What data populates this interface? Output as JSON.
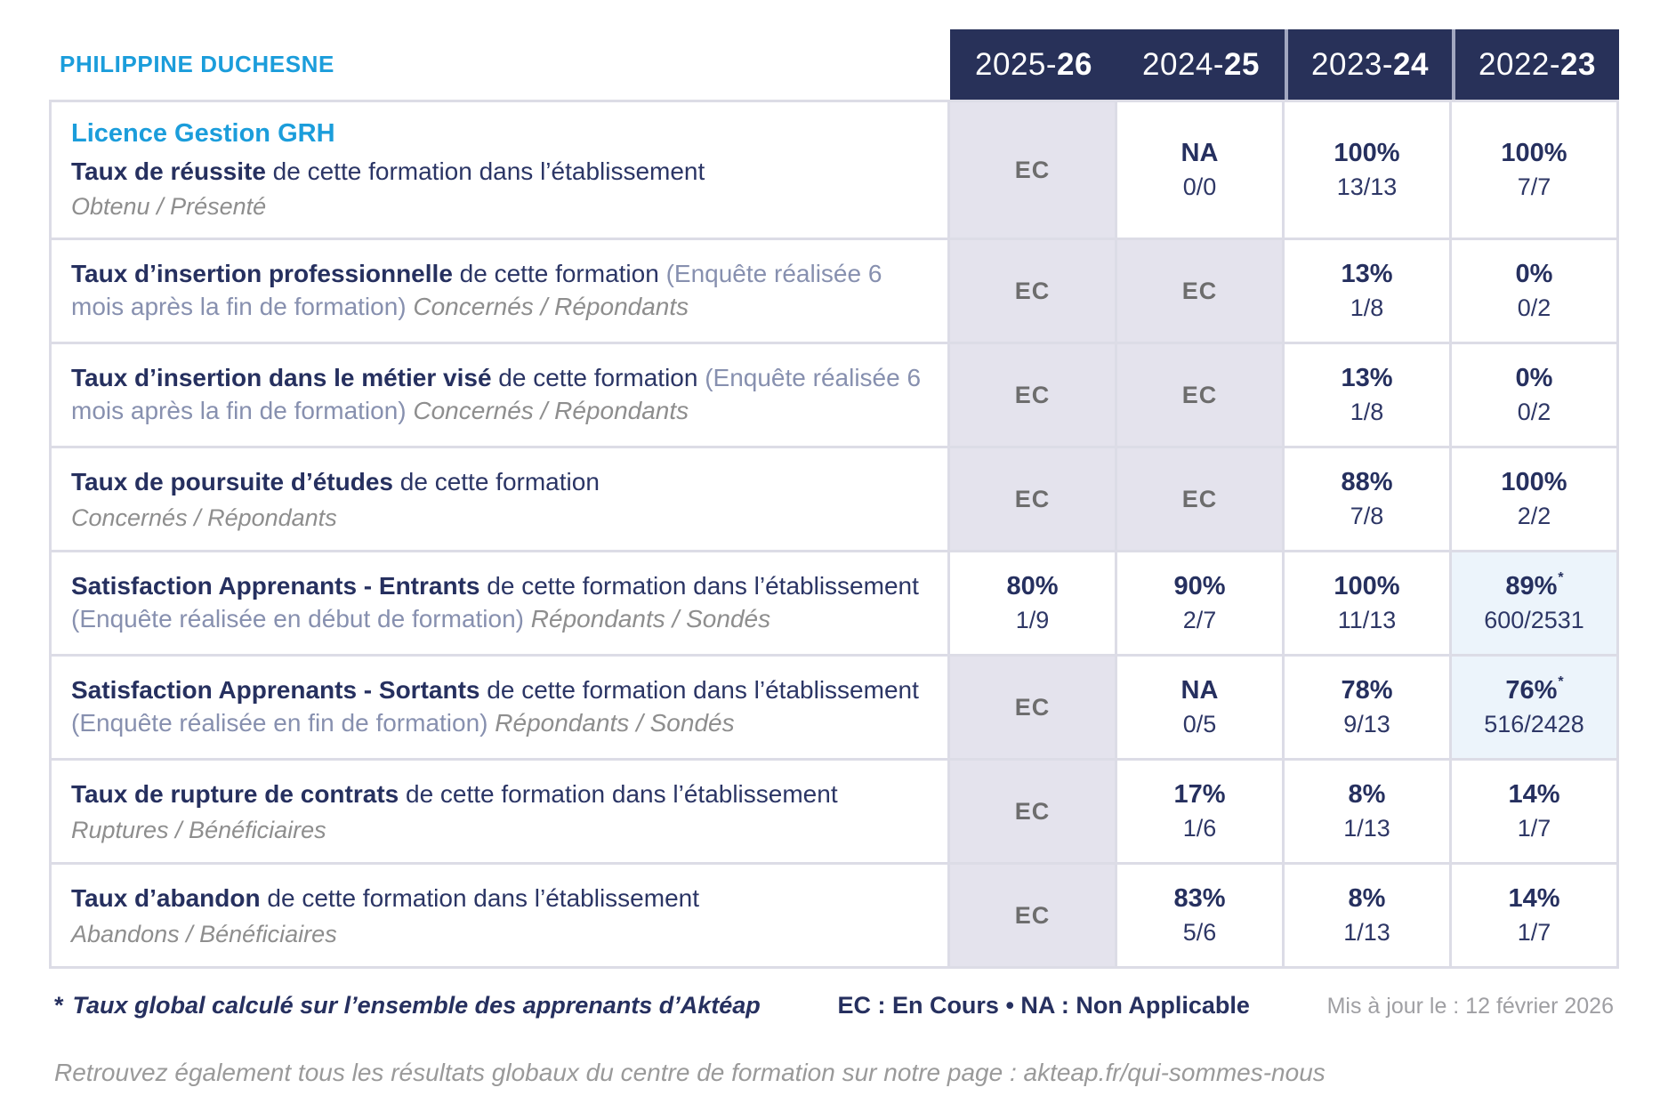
{
  "page": {
    "title": "PHILIPPINE DUCHESNE"
  },
  "columns": [
    {
      "prefix": "2025-",
      "bold": "26"
    },
    {
      "prefix": "2024-",
      "bold": "25"
    },
    {
      "prefix": "2023-",
      "bold": "24"
    },
    {
      "prefix": "2022-",
      "bold": "23"
    }
  ],
  "rows": [
    {
      "title": "Licence Gestion GRH",
      "bold": "Taux de réussite",
      "regular": " de cette formation dans l’établissement",
      "paren": "",
      "inline_sub": "",
      "sub": "Obtenu / Présenté",
      "cells": [
        {
          "main": "EC",
          "sub": "",
          "type": "ec",
          "asterisk": ""
        },
        {
          "main": "NA",
          "sub": "0/0",
          "type": "plain",
          "asterisk": ""
        },
        {
          "main": "100%",
          "sub": "13/13",
          "type": "plain",
          "asterisk": ""
        },
        {
          "main": "100%",
          "sub": "7/7",
          "type": "plain",
          "asterisk": ""
        }
      ]
    },
    {
      "title": "",
      "bold": "Taux d’insertion professionnelle",
      "regular": " de cette formation ",
      "paren": "(Enquête réalisée 6 mois après la fin de formation)",
      "inline_sub": " Concernés / Répondants",
      "sub": "",
      "cells": [
        {
          "main": "EC",
          "sub": "",
          "type": "ec",
          "asterisk": ""
        },
        {
          "main": "EC",
          "sub": "",
          "type": "ec",
          "asterisk": ""
        },
        {
          "main": "13%",
          "sub": "1/8",
          "type": "plain",
          "asterisk": ""
        },
        {
          "main": "0%",
          "sub": "0/2",
          "type": "plain",
          "asterisk": ""
        }
      ]
    },
    {
      "title": "",
      "bold": "Taux d’insertion dans le métier visé",
      "regular": " de cette formation ",
      "paren": "(Enquête réalisée 6 mois après la fin de formation)",
      "inline_sub": " Concernés / Répondants",
      "sub": "",
      "cells": [
        {
          "main": "EC",
          "sub": "",
          "type": "ec",
          "asterisk": ""
        },
        {
          "main": "EC",
          "sub": "",
          "type": "ec",
          "asterisk": ""
        },
        {
          "main": "13%",
          "sub": "1/8",
          "type": "plain",
          "asterisk": ""
        },
        {
          "main": "0%",
          "sub": "0/2",
          "type": "plain",
          "asterisk": ""
        }
      ]
    },
    {
      "title": "",
      "bold": "Taux de poursuite d’études",
      "regular": " de cette formation",
      "paren": "",
      "inline_sub": "",
      "sub": "Concernés / Répondants",
      "cells": [
        {
          "main": "EC",
          "sub": "",
          "type": "ec",
          "asterisk": ""
        },
        {
          "main": "EC",
          "sub": "",
          "type": "ec",
          "asterisk": ""
        },
        {
          "main": "88%",
          "sub": "7/8",
          "type": "plain",
          "asterisk": ""
        },
        {
          "main": "100%",
          "sub": "2/2",
          "type": "plain",
          "asterisk": ""
        }
      ]
    },
    {
      "title": "",
      "bold": "Satisfaction Apprenants - Entrants",
      "regular": " de cette formation dans l’établissement ",
      "paren": "(Enquête réalisée en début de formation)",
      "inline_sub": " Répondants / Sondés",
      "sub": "",
      "cells": [
        {
          "main": "80%",
          "sub": "1/9",
          "type": "plain",
          "asterisk": ""
        },
        {
          "main": "90%",
          "sub": "2/7",
          "type": "plain",
          "asterisk": ""
        },
        {
          "main": "100%",
          "sub": "11/13",
          "type": "plain",
          "asterisk": ""
        },
        {
          "main": "89%",
          "sub": "600/2531",
          "type": "highlight",
          "asterisk": "*"
        }
      ]
    },
    {
      "title": "",
      "bold": "Satisfaction Apprenants - Sortants",
      "regular": " de cette formation dans l’établissement ",
      "paren": "(Enquête réalisée en fin de formation)",
      "inline_sub": " Répondants / Sondés",
      "sub": "",
      "cells": [
        {
          "main": "EC",
          "sub": "",
          "type": "ec",
          "asterisk": ""
        },
        {
          "main": "NA",
          "sub": "0/5",
          "type": "plain",
          "asterisk": ""
        },
        {
          "main": "78%",
          "sub": "9/13",
          "type": "plain",
          "asterisk": ""
        },
        {
          "main": "76%",
          "sub": "516/2428",
          "type": "highlight",
          "asterisk": "*"
        }
      ]
    },
    {
      "title": "",
      "bold": "Taux de rupture de contrats",
      "regular": " de cette formation dans l’établissement",
      "paren": "",
      "inline_sub": "",
      "sub": "Ruptures / Bénéficiaires",
      "cells": [
        {
          "main": "EC",
          "sub": "",
          "type": "ec",
          "asterisk": ""
        },
        {
          "main": "17%",
          "sub": "1/6",
          "type": "plain",
          "asterisk": ""
        },
        {
          "main": "8%",
          "sub": "1/13",
          "type": "plain",
          "asterisk": ""
        },
        {
          "main": "14%",
          "sub": "1/7",
          "type": "plain",
          "asterisk": ""
        }
      ]
    },
    {
      "title": "",
      "bold": "Taux d’abandon",
      "regular": " de cette formation dans l’établissement",
      "paren": "",
      "inline_sub": "",
      "sub": "Abandons / Bénéficiaires",
      "cells": [
        {
          "main": "EC",
          "sub": "",
          "type": "ec",
          "asterisk": ""
        },
        {
          "main": "83%",
          "sub": "5/6",
          "type": "plain",
          "asterisk": ""
        },
        {
          "main": "8%",
          "sub": "1/13",
          "type": "plain",
          "asterisk": ""
        },
        {
          "main": "14%",
          "sub": "1/7",
          "type": "plain",
          "asterisk": ""
        }
      ]
    }
  ],
  "footer": {
    "footnote_star": "*",
    "footnote": "Taux global calculé sur l’ensemble des apprenants d’Aktéap",
    "legend": "EC : En Cours  •  NA : Non Applicable",
    "updated": "Mis à jour le : 12 février 2026",
    "bottom_line": "Retrouvez également tous les résultats globaux du centre de formation sur notre page : akteap.fr/qui-sommes-nous"
  },
  "colors": {
    "accent_cyan": "#1B9DDB",
    "header_navy": "#283159",
    "text_navy": "#26305F",
    "ec_cell_bg": "#E4E3ED",
    "highlight_cell_bg": "#ECF4FB",
    "grid_border": "#DCDCE6",
    "ec_text_gray": "#6D6D6D",
    "muted_gray": "#8E8E8E"
  }
}
